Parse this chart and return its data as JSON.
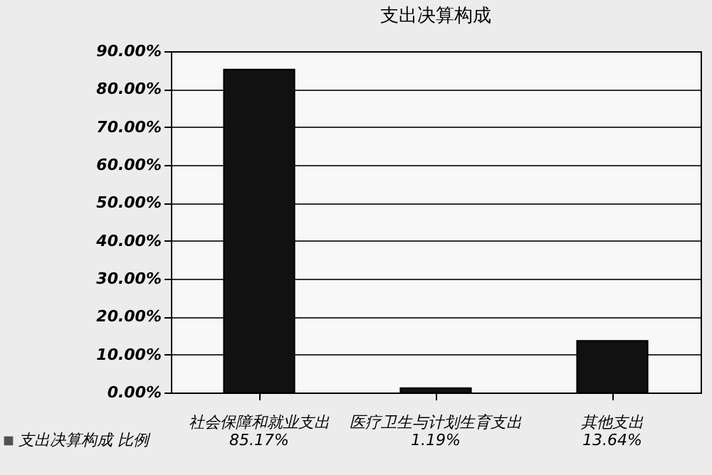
{
  "chart_data": {
    "type": "bar",
    "title": "支出决算构成",
    "categories": [
      "社会保障和就业支出",
      "医疗卫生与计划生育支出",
      "其他支出"
    ],
    "series": [
      {
        "name": "支出决算构成 比例",
        "color": "#111111",
        "values": [
          85.17,
          1.19,
          13.64
        ],
        "value_labels": [
          "85.17%",
          "1.19%",
          "13.64%"
        ]
      }
    ],
    "ylim": [
      0,
      90
    ],
    "yticks": [
      {
        "value": 0,
        "label": "0.00%"
      },
      {
        "value": 10,
        "label": "10.00%"
      },
      {
        "value": 20,
        "label": "20.00%"
      },
      {
        "value": 30,
        "label": "30.00%"
      },
      {
        "value": 40,
        "label": "40.00%"
      },
      {
        "value": 50,
        "label": "50.00%"
      },
      {
        "value": 60,
        "label": "60.00%"
      },
      {
        "value": 70,
        "label": "70.00%"
      },
      {
        "value": 80,
        "label": "80.00%"
      },
      {
        "value": 90,
        "label": "90.00%"
      }
    ],
    "grid": "y",
    "legend": "bottom left"
  }
}
